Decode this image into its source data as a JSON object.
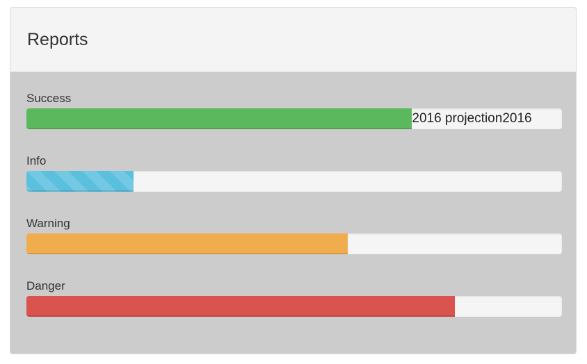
{
  "panel": {
    "title": "Reports"
  },
  "reports": [
    {
      "label": "Success",
      "percent": 72,
      "color": "#5cb85c",
      "text": "2016 projection2016"
    },
    {
      "label": "Info",
      "percent": 20,
      "color": "#5bc0de"
    },
    {
      "label": "Warning",
      "percent": 60,
      "color": "#f0ad4e"
    },
    {
      "label": "Danger",
      "percent": 80,
      "color": "#d9534f"
    }
  ]
}
